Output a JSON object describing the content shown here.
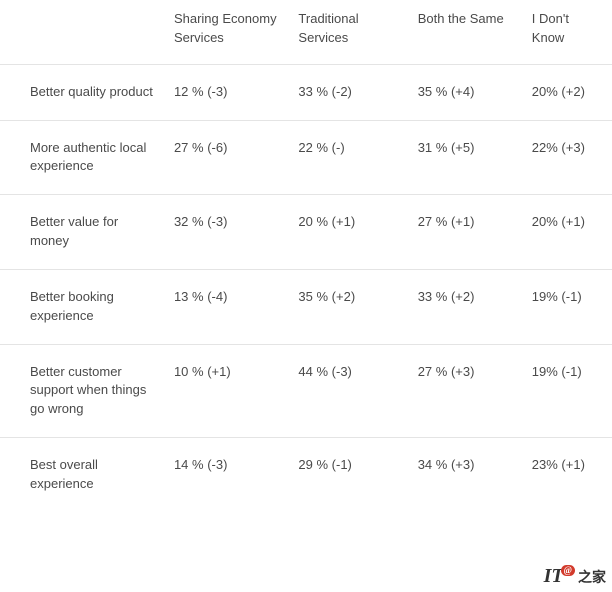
{
  "table": {
    "columns": [
      "Sharing Economy Services",
      "Traditional Services",
      "Both the Same",
      "I Don't Know"
    ],
    "rows": [
      {
        "label": "Better quality product",
        "cells": [
          "12 % (-3)",
          "33 % (-2)",
          "35 % (+4)",
          "20% (+2)"
        ]
      },
      {
        "label": "More authentic local experience",
        "cells": [
          "27 % (-6)",
          "22 % (-)",
          "31 % (+5)",
          "22% (+3)"
        ]
      },
      {
        "label": "Better value for money",
        "cells": [
          "32 % (-3)",
          "20 % (+1)",
          "27 % (+1)",
          "20% (+1)"
        ]
      },
      {
        "label": "Better booking experience",
        "cells": [
          "13 % (-4)",
          "35 % (+2)",
          "33 % (+2)",
          "19% (-1)"
        ]
      },
      {
        "label": "Better customer support when things go wrong",
        "cells": [
          "10 % (+1)",
          "44 % (-3)",
          "27 % (+3)",
          "19% (-1)"
        ]
      },
      {
        "label": "Best overall experience",
        "cells": [
          "14 % (-3)",
          "29 % (-1)",
          "34 % (+3)",
          "23% (+1)"
        ]
      }
    ],
    "border_color": "#e4e4e4",
    "text_color": "#4a4a4a",
    "font_size_pt": 10,
    "background_color": "#ffffff"
  },
  "watermark": {
    "prefix": "IT",
    "badge": "@",
    "suffix": "之家"
  }
}
